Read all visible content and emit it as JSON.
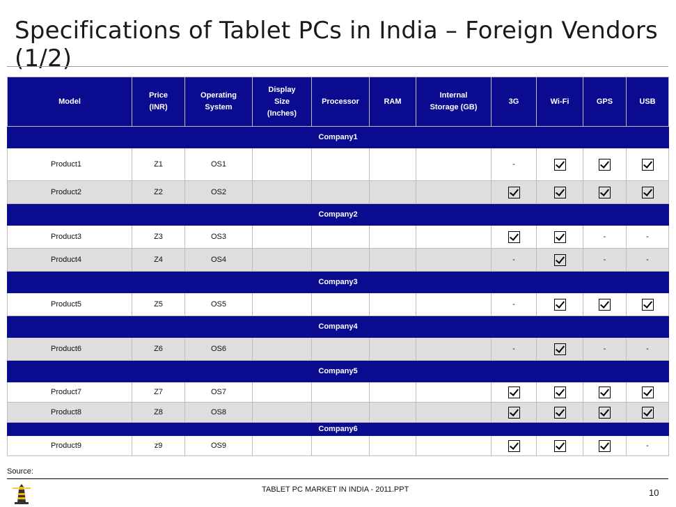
{
  "title": "Specifications of Tablet PCs in India – Foreign Vendors (1/2)",
  "headers": {
    "model": [
      "Model"
    ],
    "price": [
      "Price",
      "(INR)"
    ],
    "os": [
      "Operating",
      "System"
    ],
    "display": [
      "Display",
      "Size",
      "(Inches)"
    ],
    "processor": [
      "Processor"
    ],
    "ram": [
      "RAM"
    ],
    "storage": [
      "Internal",
      "Storage (GB)"
    ],
    "g3": [
      "3G"
    ],
    "wifi": [
      "Wi-Fi"
    ],
    "gps": [
      "GPS"
    ],
    "usb": [
      "USB"
    ]
  },
  "companies": [
    {
      "name": "Company1",
      "products": [
        {
          "model": "Product1",
          "price": "Z1",
          "os": "OS1",
          "g3": "-",
          "wifi": "check",
          "gps": "check",
          "usb": "check"
        },
        {
          "model": "Product2",
          "price": "Z2",
          "os": "OS2",
          "g3": "check",
          "wifi": "check",
          "gps": "check",
          "usb": "check"
        }
      ]
    },
    {
      "name": "Company2",
      "products": [
        {
          "model": "Product3",
          "price": "Z3",
          "os": "OS3",
          "g3": "check",
          "wifi": "check",
          "gps": "-",
          "usb": "-"
        },
        {
          "model": "Product4",
          "price": "Z4",
          "os": "OS4",
          "g3": "-",
          "wifi": "check",
          "gps": "-",
          "usb": "-"
        }
      ]
    },
    {
      "name": "Company3",
      "products": [
        {
          "model": "Product5",
          "price": "Z5",
          "os": "OS5",
          "g3": "-",
          "wifi": "check",
          "gps": "check",
          "usb": "check"
        }
      ]
    },
    {
      "name": "Company4",
      "products": [
        {
          "model": "Product6",
          "price": "Z6",
          "os": "OS6",
          "g3": "-",
          "wifi": "check",
          "gps": "-",
          "usb": "-"
        }
      ]
    },
    {
      "name": "Company5",
      "products": [
        {
          "model": "Product7",
          "price": "Z7",
          "os": "OS7",
          "g3": "check",
          "wifi": "check",
          "gps": "check",
          "usb": "check"
        },
        {
          "model": "Product8",
          "price": "Z8",
          "os": "OS8",
          "g3": "check",
          "wifi": "check",
          "gps": "check",
          "usb": "check"
        }
      ]
    },
    {
      "name": "Company6",
      "products": [
        {
          "model": "Product9",
          "price": "z9",
          "os": "OS9",
          "g3": "check",
          "wifi": "check",
          "gps": "check",
          "usb": "-"
        }
      ]
    }
  ],
  "source_label": "Source:",
  "footer_text": "TABLET PC MARKET IN INDIA - 2011.PPT",
  "page_number": "10",
  "colors": {
    "header_bg": "#0b0b8f",
    "shade_row": "#dedede"
  }
}
